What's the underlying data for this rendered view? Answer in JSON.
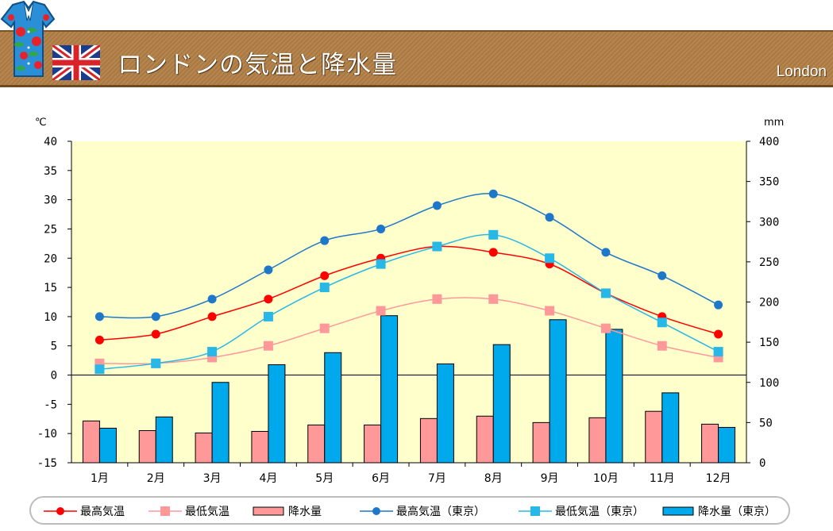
{
  "header": {
    "title": "ロンドンの気温と降水量",
    "subtitle": "London"
  },
  "colors": {
    "london_max": "#ff0000",
    "london_min": "#ff9999",
    "london_rain": "#ff9999",
    "tokyo_max": "#1f77c9",
    "tokyo_min": "#28b8e8",
    "tokyo_rain": "#00a8ec",
    "plot_bg": "#ffffcc"
  },
  "chart_data": {
    "type": "bar+line",
    "categories": [
      "1月",
      "2月",
      "3月",
      "4月",
      "5月",
      "6月",
      "7月",
      "8月",
      "9月",
      "10月",
      "11月",
      "12月"
    ],
    "left_axis": {
      "unit": "℃",
      "min": -15,
      "max": 40,
      "step": 5,
      "ticks": [
        "40",
        "35",
        "30",
        "25",
        "20",
        "15",
        "10",
        "5",
        "0",
        "-5",
        "-10",
        "-15"
      ]
    },
    "right_axis": {
      "unit": "mm",
      "min": 0,
      "max": 400,
      "step": 50,
      "ticks": [
        "400",
        "350",
        "300",
        "250",
        "200",
        "150",
        "100",
        "50",
        "0"
      ]
    },
    "series": [
      {
        "name": "最高気温",
        "kind": "line",
        "axis": "left",
        "marker": "circle",
        "values": [
          6,
          7,
          10,
          13,
          17,
          20,
          22,
          21,
          19,
          14,
          10,
          7
        ]
      },
      {
        "name": "最低気温",
        "kind": "line",
        "axis": "left",
        "marker": "square",
        "values": [
          2,
          2,
          3,
          5,
          8,
          11,
          13,
          13,
          11,
          8,
          5,
          3
        ]
      },
      {
        "name": "降水量",
        "kind": "bar",
        "axis": "right",
        "values": [
          52,
          40,
          37,
          39,
          47,
          47,
          55,
          58,
          50,
          56,
          64,
          48
        ]
      },
      {
        "name": "最高気温（東京）",
        "kind": "line",
        "axis": "left",
        "marker": "circle",
        "values": [
          10,
          10,
          13,
          18,
          23,
          25,
          29,
          31,
          27,
          21,
          17,
          12
        ]
      },
      {
        "name": "最低気温（東京）",
        "kind": "line",
        "axis": "left",
        "marker": "square",
        "values": [
          1,
          2,
          4,
          10,
          15,
          19,
          22,
          24,
          20,
          14,
          9,
          4
        ]
      },
      {
        "name": "降水量（東京）",
        "kind": "bar",
        "axis": "right",
        "values": [
          43,
          57,
          100,
          122,
          137,
          183,
          123,
          147,
          178,
          166,
          87,
          44
        ]
      }
    ]
  }
}
